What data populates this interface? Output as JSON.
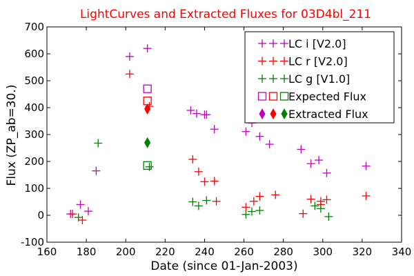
{
  "chart_data": {
    "type": "scatter",
    "title": "LightCurves and Extracted Fluxes for 03D4bl_211",
    "title_color": "#ff0000",
    "xlabel": "Date (since 01-Jan-2003)",
    "ylabel": "Flux (ZP_ab=30.)",
    "xlim": [
      160,
      340
    ],
    "ylim": [
      -100,
      700
    ],
    "xticks": [
      160,
      180,
      200,
      220,
      240,
      260,
      280,
      300,
      320,
      340
    ],
    "yticks": [
      -100,
      0,
      100,
      200,
      300,
      400,
      500,
      600,
      700
    ],
    "grid": false,
    "legend_position": "top-right",
    "series": [
      {
        "name": "LC i [V2.0]",
        "marker": "plus",
        "color": "#bf00bf",
        "points": [
          {
            "x": 172,
            "y": 5
          },
          {
            "x": 177,
            "y": 40
          },
          {
            "x": 181,
            "y": 15
          },
          {
            "x": 185,
            "y": 165
          },
          {
            "x": 202,
            "y": 590
          },
          {
            "x": 211,
            "y": 620
          },
          {
            "x": 233,
            "y": 390
          },
          {
            "x": 236,
            "y": 378
          },
          {
            "x": 240,
            "y": 374
          },
          {
            "x": 241,
            "y": 374
          },
          {
            "x": 245,
            "y": 320
          },
          {
            "x": 261,
            "y": 311
          },
          {
            "x": 264,
            "y": 343
          },
          {
            "x": 268,
            "y": 293
          },
          {
            "x": 273,
            "y": 264
          },
          {
            "x": 289,
            "y": 245
          },
          {
            "x": 294,
            "y": 192
          },
          {
            "x": 298,
            "y": 205
          },
          {
            "x": 302,
            "y": 157
          },
          {
            "x": 322,
            "y": 183
          }
        ]
      },
      {
        "name": "LC r [V2.0]",
        "marker": "plus",
        "color": "#ff0000",
        "points": [
          {
            "x": 173,
            "y": 5
          },
          {
            "x": 178,
            "y": -18
          },
          {
            "x": 202,
            "y": 525
          },
          {
            "x": 212,
            "y": 405
          },
          {
            "x": 234,
            "y": 208
          },
          {
            "x": 237,
            "y": 162
          },
          {
            "x": 240,
            "y": 125
          },
          {
            "x": 245,
            "y": 127
          },
          {
            "x": 246,
            "y": 52
          },
          {
            "x": 261,
            "y": 30
          },
          {
            "x": 265,
            "y": 52
          },
          {
            "x": 268,
            "y": 70
          },
          {
            "x": 276,
            "y": 76
          },
          {
            "x": 290,
            "y": 6
          },
          {
            "x": 294,
            "y": 60
          },
          {
            "x": 299,
            "y": 40
          },
          {
            "x": 299,
            "y": 52
          },
          {
            "x": 302,
            "y": 58
          },
          {
            "x": 322,
            "y": 72
          }
        ]
      },
      {
        "name": "LC g [V1.0]",
        "marker": "plus",
        "color": "#008000",
        "points": [
          {
            "x": 176,
            "y": -8
          },
          {
            "x": 186,
            "y": 268
          },
          {
            "x": 212,
            "y": 180
          },
          {
            "x": 234,
            "y": 50
          },
          {
            "x": 237,
            "y": 35
          },
          {
            "x": 241,
            "y": 55
          },
          {
            "x": 261,
            "y": 3
          },
          {
            "x": 264,
            "y": 14
          },
          {
            "x": 268,
            "y": 18
          },
          {
            "x": 296,
            "y": 35
          },
          {
            "x": 299,
            "y": 25
          },
          {
            "x": 303,
            "y": -5
          }
        ]
      },
      {
        "name": "Expected Flux",
        "marker": "square",
        "colors": [
          "#bf00bf",
          "#ff0000",
          "#008000"
        ],
        "points": [
          {
            "x": 211,
            "y": 470,
            "color": "#bf00bf"
          },
          {
            "x": 211,
            "y": 425,
            "color": "#ff0000"
          },
          {
            "x": 211,
            "y": 185,
            "color": "#008000"
          }
        ]
      },
      {
        "name": "Extracted Flux",
        "marker": "diamond",
        "colors": [
          "#bf00bf",
          "#ff0000",
          "#008000"
        ],
        "points": [
          {
            "x": 211,
            "y": 395,
            "color": "#ff0000"
          },
          {
            "x": 211,
            "y": 270,
            "color": "#008000"
          }
        ]
      }
    ]
  }
}
